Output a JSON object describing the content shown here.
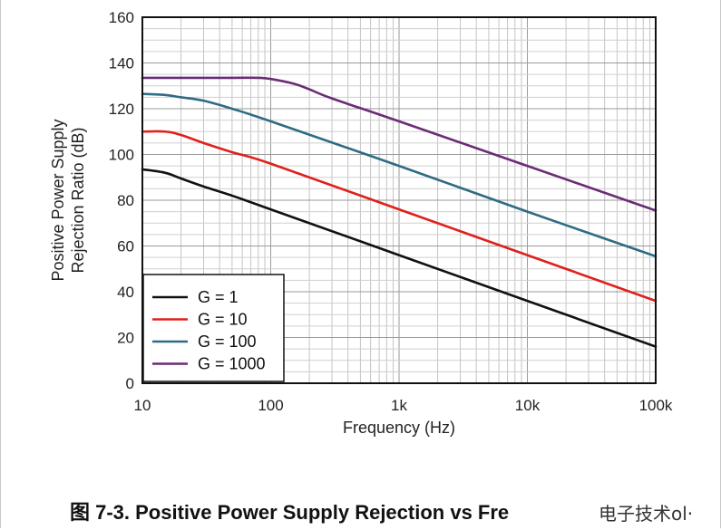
{
  "chart_data": {
    "type": "line",
    "xscale": "log",
    "xlim": [
      10,
      100000
    ],
    "ylim": [
      0,
      160
    ],
    "grid": true,
    "xlabel": "Frequency (Hz)",
    "ylabel_line1": "Positive Power Supply",
    "ylabel_line2": "Rejection Ratio (dB)",
    "x_tick_labels": [
      {
        "value": 10,
        "label": "10"
      },
      {
        "value": 100,
        "label": "100"
      },
      {
        "value": 1000,
        "label": "1k"
      },
      {
        "value": 10000,
        "label": "10k"
      },
      {
        "value": 100000,
        "label": "100k"
      }
    ],
    "y_tick_labels": [
      "0",
      "20",
      "40",
      "60",
      "80",
      "100",
      "120",
      "140",
      "160"
    ],
    "y_tick_values": [
      0,
      20,
      40,
      60,
      80,
      100,
      120,
      140,
      160
    ],
    "legend_position": "bottom-left",
    "series": [
      {
        "name": "G = 1",
        "color": "#111111",
        "x": [
          10,
          15,
          20,
          30,
          50,
          100,
          1000,
          10000,
          100000
        ],
        "y": [
          93.5,
          92,
          89.5,
          86,
          82,
          76,
          56,
          36,
          16
        ]
      },
      {
        "name": "G = 10",
        "color": "#e0201b",
        "x": [
          10,
          15,
          20,
          30,
          50,
          100,
          1000,
          10000,
          100000
        ],
        "y": [
          110,
          110,
          108.5,
          105,
          101,
          96,
          76,
          56,
          36
        ]
      },
      {
        "name": "G = 100",
        "color": "#2f6b84",
        "x": [
          10,
          15,
          20,
          30,
          50,
          100,
          1000,
          10000,
          100000
        ],
        "y": [
          126.5,
          126,
          125,
          123.5,
          120,
          114.5,
          95,
          75,
          55.5
        ]
      },
      {
        "name": "G = 1000",
        "color": "#6a2c74",
        "x": [
          10,
          20,
          50,
          80,
          100,
          150,
          200,
          300,
          1000,
          10000,
          100000
        ],
        "y": [
          133.5,
          133.5,
          133.5,
          133.5,
          133,
          131,
          128.5,
          124.5,
          114.5,
          95,
          75.5
        ]
      }
    ]
  },
  "caption": "图 7-3. Positive Power Supply Rejection vs Fre",
  "watermark": "电子技术ol·"
}
